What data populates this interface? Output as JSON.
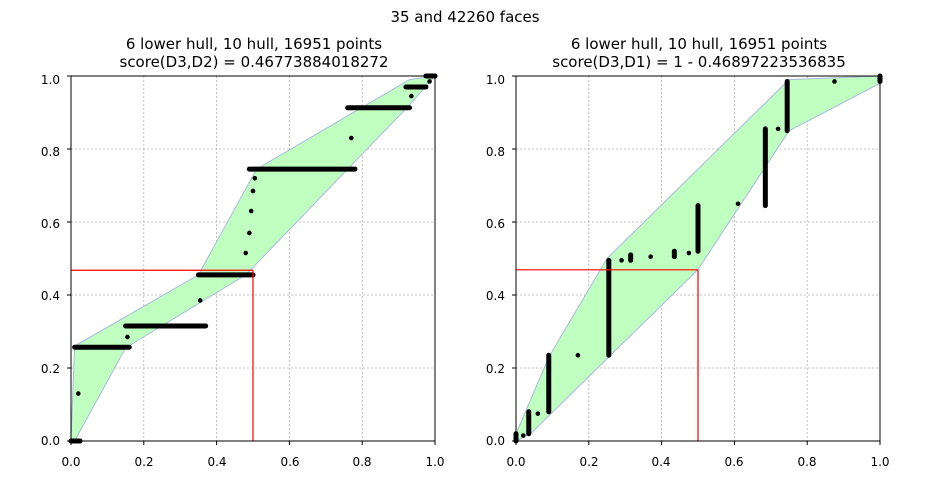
{
  "figure": {
    "suptitle": "35 and 42260 faces"
  },
  "chart_data": [
    {
      "type": "scatter",
      "title_line1": "6 lower hull, 10 hull, 16951 points",
      "title_line2": "score(D3,D2) = 0.46773884018272",
      "xlim": [
        0,
        1
      ],
      "ylim": [
        0,
        1
      ],
      "xticks": [
        "0.0",
        "0.2",
        "0.4",
        "0.6",
        "0.8",
        "1.0"
      ],
      "yticks": [
        "0.0",
        "0.2",
        "0.4",
        "0.6",
        "0.8",
        "1.0"
      ],
      "grid": true,
      "hull_fill": "#bfffbf",
      "hull_edge": "#a9b8e0",
      "hull": [
        [
          0,
          0
        ],
        [
          0.01,
          0
        ],
        [
          0.15,
          0.255
        ],
        [
          0.48,
          0.455
        ],
        [
          0.92,
          0.91
        ],
        [
          1,
          1
        ],
        [
          0.93,
          0.99
        ],
        [
          0.51,
          0.745
        ],
        [
          0.35,
          0.455
        ],
        [
          0.01,
          0.26
        ],
        [
          0,
          0
        ]
      ],
      "point_color": "#000000",
      "segments": [
        [
          0,
          0.025,
          0
        ],
        [
          0.01,
          0.16,
          0.257
        ],
        [
          0.15,
          0.37,
          0.315
        ],
        [
          0.35,
          0.5,
          0.455
        ],
        [
          0.49,
          0.78,
          0.745
        ],
        [
          0.76,
          0.93,
          0.913
        ],
        [
          0.92,
          0.975,
          0.97
        ],
        [
          0.975,
          1,
          1
        ]
      ],
      "vsegments": [],
      "points": [
        [
          0.02,
          0.13
        ],
        [
          0.155,
          0.285
        ],
        [
          0.355,
          0.385
        ],
        [
          0.48,
          0.515
        ],
        [
          0.49,
          0.57
        ],
        [
          0.495,
          0.63
        ],
        [
          0.5,
          0.685
        ],
        [
          0.505,
          0.72
        ],
        [
          0.77,
          0.83
        ],
        [
          0.935,
          0.945
        ],
        [
          0.985,
          0.985
        ]
      ],
      "marker": {
        "x": 0.5,
        "y": 0.46773884018272,
        "color": "#ff0000"
      }
    },
    {
      "type": "scatter",
      "title_line1": "6 lower hull, 10 hull, 16951 points",
      "title_line2": "score(D3,D1) = 1 - 0.46897223536835",
      "xlim": [
        0,
        1
      ],
      "ylim": [
        0,
        1
      ],
      "xticks": [
        "0.0",
        "0.2",
        "0.4",
        "0.6",
        "0.8",
        "1.0"
      ],
      "yticks": [
        "0.0",
        "0.2",
        "0.4",
        "0.6",
        "0.8",
        "1.0"
      ],
      "grid": true,
      "hull_fill": "#bfffbf",
      "hull_edge": "#a9b8e0",
      "hull": [
        [
          0,
          0
        ],
        [
          0.04,
          0.02
        ],
        [
          0.5,
          0.47
        ],
        [
          0.75,
          0.85
        ],
        [
          1,
          0.98
        ],
        [
          1,
          1
        ],
        [
          0.75,
          0.99
        ],
        [
          0.25,
          0.5
        ],
        [
          0.09,
          0.23
        ],
        [
          0,
          0.02
        ],
        [
          0,
          0
        ]
      ],
      "point_color": "#000000",
      "segments": [],
      "vsegments": [
        [
          0,
          0,
          0.02
        ],
        [
          0.035,
          0.02,
          0.08
        ],
        [
          0.09,
          0.08,
          0.235
        ],
        [
          0.255,
          0.235,
          0.495
        ],
        [
          0.315,
          0.495,
          0.51
        ],
        [
          0.435,
          0.505,
          0.52
        ],
        [
          0.5,
          0.52,
          0.645
        ],
        [
          0.685,
          0.645,
          0.855
        ],
        [
          0.745,
          0.85,
          0.985
        ],
        [
          1,
          0.985,
          1
        ]
      ],
      "points": [
        [
          0.02,
          0.015
        ],
        [
          0.06,
          0.075
        ],
        [
          0.17,
          0.235
        ],
        [
          0.29,
          0.495
        ],
        [
          0.37,
          0.505
        ],
        [
          0.475,
          0.515
        ],
        [
          0.61,
          0.65
        ],
        [
          0.72,
          0.855
        ],
        [
          0.875,
          0.985
        ]
      ],
      "marker": {
        "x": 0.5,
        "y": 0.46897223536835,
        "color": "#ff0000"
      }
    }
  ]
}
